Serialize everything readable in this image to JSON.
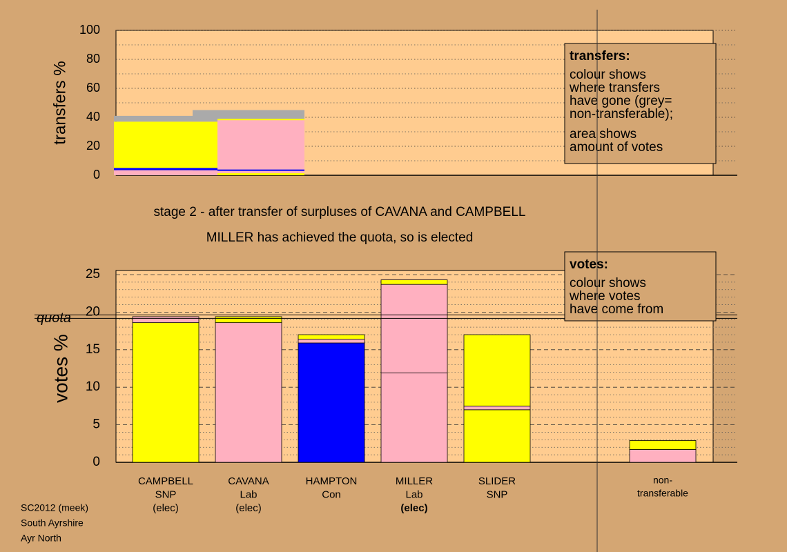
{
  "chart_data": [
    {
      "type": "transfer_bar",
      "y_label": "transfers %",
      "ylim": [
        0,
        100
      ],
      "yticks": [
        0,
        20,
        40,
        60,
        80,
        100
      ],
      "minor_ticks": [
        10,
        30,
        50,
        70,
        90
      ],
      "bars": [
        {
          "segments": [
            {
              "color": "#ffb0c0",
              "value": 3.5
            },
            {
              "color": "#0000ff",
              "value": 1.5
            },
            {
              "color": "#ffff00",
              "value": 32
            },
            {
              "color": "#aaaaaa",
              "value": 4
            }
          ]
        },
        {
          "segments": [
            {
              "color": "#ffff00",
              "value": 1.5
            },
            {
              "color": "#ffb0c0",
              "value": 1.5
            },
            {
              "color": "#0000ff",
              "value": 1
            },
            {
              "color": "#ffb0c0",
              "value": 34
            },
            {
              "color": "#ffff00",
              "value": 1
            },
            {
              "color": "#aaaaaa",
              "value": 6
            }
          ]
        }
      ],
      "legend": {
        "title": "transfers:",
        "lines": [
          "colour shows",
          "where transfers",
          "have gone (grey=",
          "non-transferable);",
          "area shows",
          "amount of votes"
        ]
      }
    },
    {
      "type": "stacked_bar",
      "y_label": "votes %",
      "ylim": [
        0,
        25
      ],
      "yticks": [
        0,
        5,
        10,
        15,
        20,
        25
      ],
      "minor_ticks": [
        1,
        2,
        3,
        4,
        6,
        7,
        8,
        9,
        11,
        12,
        13,
        14,
        16,
        17,
        18,
        19,
        21,
        22,
        23,
        24
      ],
      "quota": 19.4,
      "quota_label": "quota",
      "bars": [
        {
          "label": [
            "CAMPBELL",
            "SNP",
            "(elec)"
          ],
          "segments": [
            {
              "color": "#ffff00",
              "value": 18.6
            },
            {
              "color": "#ffb0c0",
              "value": 0.8
            }
          ]
        },
        {
          "label": [
            "CAVANA",
            "Lab",
            "(elec)"
          ],
          "segments": [
            {
              "color": "#ffb0c0",
              "value": 18.6
            },
            {
              "color": "#ffff00",
              "value": 0.8
            }
          ]
        },
        {
          "label": [
            "HAMPTON",
            "Con"
          ],
          "segments": [
            {
              "color": "#0000ff",
              "value": 15.9
            },
            {
              "color": "#ffb0c0",
              "value": 0.5
            },
            {
              "color": "#ffff00",
              "value": 0.6
            }
          ]
        },
        {
          "label": [
            "MILLER",
            "Lab",
            "(elec)"
          ],
          "bold_last": true,
          "segments": [
            {
              "color": "#ffb0c0",
              "value": 11.9
            },
            {
              "color": "#ffb0c0",
              "value": 11.8
            },
            {
              "color": "#ffff00",
              "value": 0.6
            }
          ]
        },
        {
          "label": [
            "SLIDER",
            "SNP"
          ],
          "segments": [
            {
              "color": "#ffff00",
              "value": 7.0
            },
            {
              "color": "#ffb0c0",
              "value": 0.5
            },
            {
              "color": "#ffff00",
              "value": 9.5
            }
          ]
        },
        {
          "label": [
            "non-",
            "transferable"
          ],
          "small": true,
          "segments": [
            {
              "color": "#ffb0c0",
              "value": 1.7
            },
            {
              "color": "#ffff00",
              "value": 1.2
            }
          ]
        }
      ],
      "legend": {
        "title": "votes:",
        "lines": [
          "colour shows",
          "where votes",
          "have come from"
        ]
      }
    }
  ],
  "stage_text": "stage 2 - after transfer of surpluses of CAVANA and CAMPBELL",
  "status_text": "MILLER has achieved the quota, so is elected",
  "footer": [
    "SC2012 (meek)",
    "South Ayrshire",
    "Ayr North"
  ]
}
